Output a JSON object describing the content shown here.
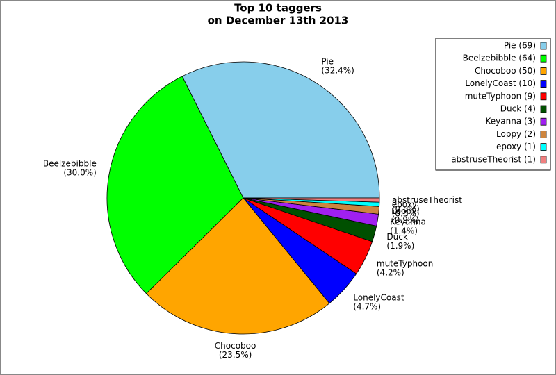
{
  "chart_data": {
    "type": "pie",
    "title": "Top 10 taggers",
    "subtitle": "on December 13th 2013",
    "categories": [
      "Pie",
      "Beelzebibble",
      "Chocoboo",
      "LonelyCoast",
      "muteTyphoon",
      "Duck",
      "Keyanna",
      "Loppy",
      "epoxy",
      "abstruseTheorist"
    ],
    "values": [
      32.4,
      30.0,
      23.5,
      4.7,
      4.2,
      1.9,
      1.4,
      0.9,
      0.5,
      0.5
    ],
    "value_labels": [
      "(32.4%)",
      "(30.0%)",
      "(23.5%)",
      "(4.7%)",
      "(4.2%)",
      "(1.9%)",
      "(1.4%)",
      "(0.9%)",
      "(0.5%)",
      "(0.5%)"
    ],
    "legend_labels": [
      "Pie (69)",
      "Beelzebibble (64)",
      "Chocoboo (50)",
      "LonelyCoast (10)",
      "muteTyphoon (9)",
      "Duck (4)",
      "Keyanna (3)",
      "Loppy (2)",
      "epoxy (1)",
      "abstruseTheorist (1)"
    ],
    "colors": [
      "#87ceeb",
      "#00ff00",
      "#ffa500",
      "#0000ff",
      "#ff0000",
      "#005000",
      "#a020f0",
      "#cd853f",
      "#00ffff",
      "#f08080"
    ],
    "legend_position": "upper right"
  }
}
